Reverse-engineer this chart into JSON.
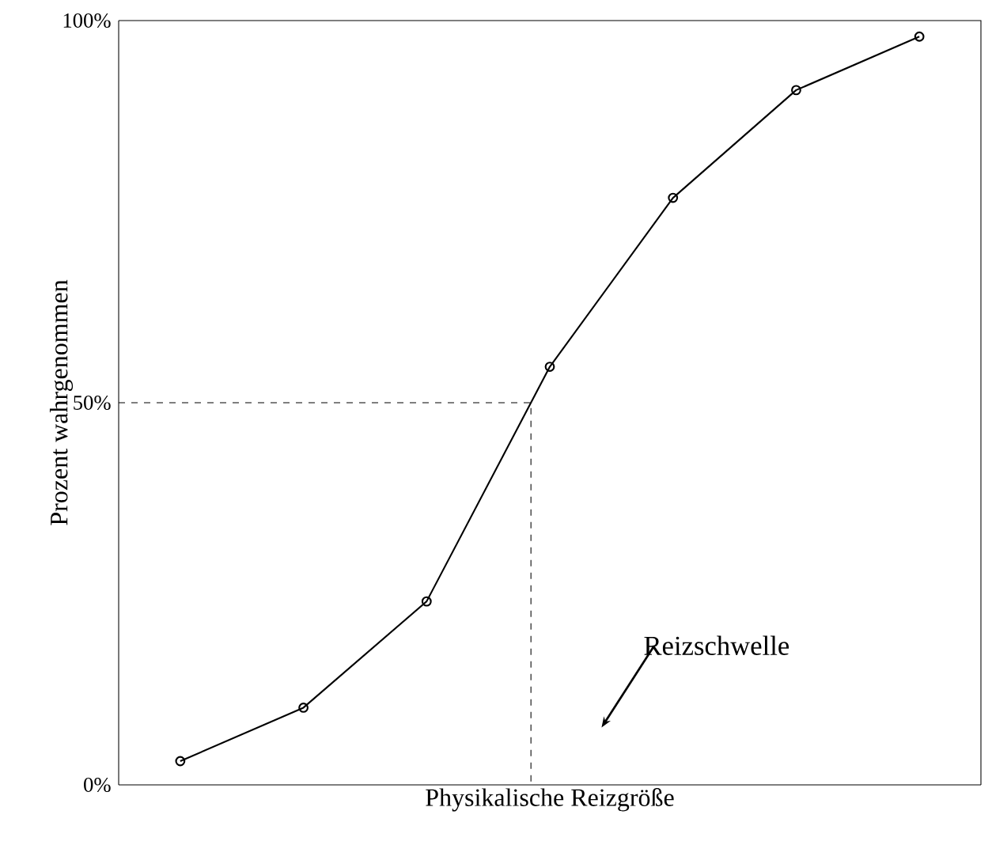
{
  "chart_data": {
    "type": "line",
    "xlabel": "Physikalische Reizgröße",
    "ylabel": "Prozent wahrgenommen",
    "categories": [
      null,
      null,
      null,
      null,
      null,
      null,
      null
    ],
    "ylim": [
      0,
      100
    ],
    "yticks": [
      {
        "value": 0,
        "label": "0%"
      },
      {
        "value": 50,
        "label": "50%"
      },
      {
        "value": 100,
        "label": "100%"
      }
    ],
    "tick_labels": "y",
    "series": [
      {
        "color": "#000000",
        "marker": "circle",
        "values": [
          3.1,
          10.1,
          24.0,
          54.7,
          76.8,
          90.9,
          97.9
        ]
      }
    ],
    "ref_lines": [
      {
        "axis": "y",
        "value": 50,
        "line_style": "dashed"
      }
    ],
    "annotations": [
      "Reizschwelle"
    ]
  }
}
